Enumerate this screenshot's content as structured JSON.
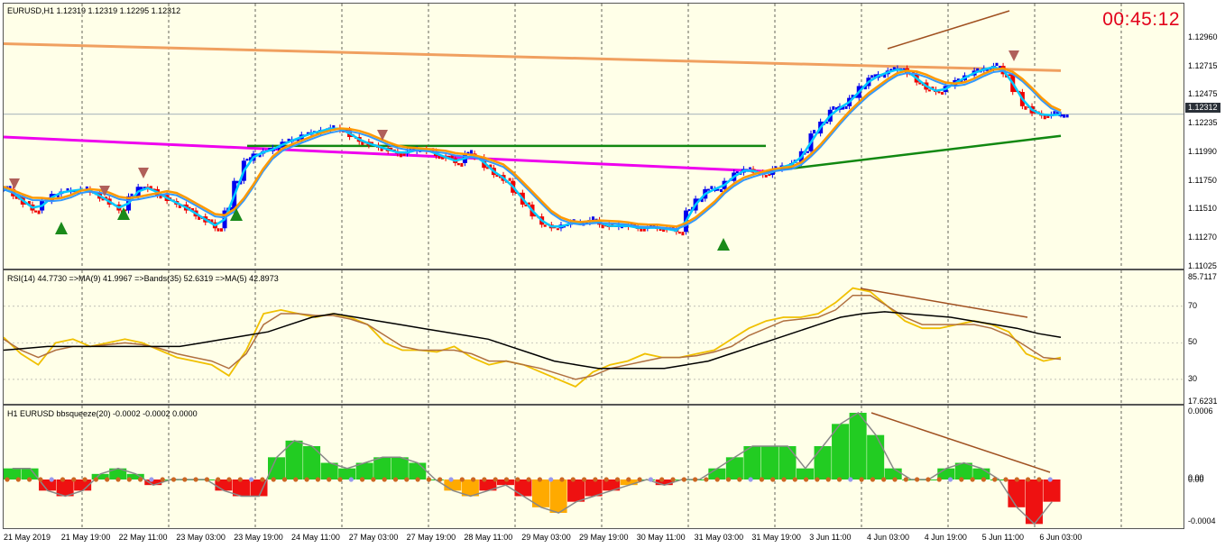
{
  "chart_window": {
    "title": "EURUSD,H1  1.12319 1.12319 1.12295 1.12312",
    "timer": "00:45:12",
    "current_price": "1.12312",
    "price_scale": [
      "1.12960",
      "1.12715",
      "1.12475",
      "1.12235",
      "1.11990",
      "1.11750",
      "1.11510",
      "1.11270",
      "1.11025"
    ],
    "time_axis": [
      "21 May 2019",
      "21 May 19:00",
      "22 May 11:00",
      "23 May 03:00",
      "23 May 19:00",
      "24 May 11:00",
      "27 May 03:00",
      "27 May 19:00",
      "28 May 11:00",
      "29 May 03:00",
      "29 May 19:00",
      "30 May 11:00",
      "31 May 03:00",
      "31 May 19:00",
      "3 Jun 11:00",
      "4 Jun 03:00",
      "4 Jun 19:00",
      "5 Jun 11:00",
      "6 Jun 03:00"
    ]
  },
  "rsi_pane": {
    "label": "RSI(14) 44.7730  =>MA(9) 41.9967  =>Bands(35) 52.6319  =>MA(5) 42.8973",
    "scale": [
      "85.7117",
      "70",
      "50",
      "30",
      "17.6231"
    ]
  },
  "squeeze_pane": {
    "label": "H1 EURUSD bbsqueeze(20) -0.0002 -0.0002 0.0000",
    "scale": [
      "0.0006",
      "0.00",
      "0.00",
      "-0.0004"
    ]
  },
  "colors": {
    "background": "#ffffe8",
    "bull_bar": "#0000ee",
    "bear_bar": "#ee0000",
    "ma_fast": "#00c8ff",
    "ma_mid": "#3399ff",
    "ma_orange": "#ff9900",
    "ma_long": "#f0a060",
    "ma_magenta": "#ee00ee",
    "ma_green": "#118811",
    "rsi_yellow": "#f0c000",
    "rsi_brown": "#b07040",
    "trendline": "#a05020",
    "hist_up": "#22cc22",
    "hist_down": "#ee1111",
    "hist_orange": "#ffaa00"
  },
  "chart_data": [
    {
      "type": "candlestick",
      "title": "EURUSD,H1",
      "ylim": [
        1.11025,
        1.132
      ],
      "x_labels": [
        "21 May 2019",
        "21 May 19:00",
        "22 May 11:00",
        "23 May 03:00",
        "23 May 19:00",
        "24 May 11:00",
        "27 May 03:00",
        "27 May 19:00",
        "28 May 11:00",
        "29 May 03:00",
        "29 May 19:00",
        "30 May 11:00",
        "31 May 03:00",
        "31 May 19:00",
        "3 Jun 11:00",
        "4 Jun 03:00",
        "4 Jun 19:00",
        "5 Jun 11:00",
        "6 Jun 03:00"
      ],
      "close_path": [
        1.1168,
        1.1162,
        1.1155,
        1.115,
        1.1158,
        1.1164,
        1.1166,
        1.1167,
        1.1168,
        1.1165,
        1.116,
        1.1155,
        1.115,
        1.1162,
        1.117,
        1.1168,
        1.1163,
        1.1158,
        1.1155,
        1.115,
        1.1145,
        1.114,
        1.1135,
        1.115,
        1.1175,
        1.1192,
        1.1198,
        1.12,
        1.1203,
        1.1208,
        1.121,
        1.1214,
        1.1216,
        1.1218,
        1.122,
        1.1218,
        1.1212,
        1.1208,
        1.1205,
        1.1203,
        1.12,
        1.1198,
        1.12,
        1.1202,
        1.12,
        1.1196,
        1.1194,
        1.119,
        1.1198,
        1.1195,
        1.1186,
        1.118,
        1.1175,
        1.1165,
        1.1155,
        1.1145,
        1.1138,
        1.1135,
        1.1138,
        1.114,
        1.114,
        1.1142,
        1.1138,
        1.1136,
        1.1138,
        1.1136,
        1.1135,
        1.1136,
        1.1135,
        1.1134,
        1.1132,
        1.115,
        1.116,
        1.1168,
        1.1168,
        1.1175,
        1.1182,
        1.1185,
        1.1182,
        1.118,
        1.1185,
        1.1188,
        1.119,
        1.12,
        1.1215,
        1.1225,
        1.1235,
        1.1238,
        1.1245,
        1.1255,
        1.1262,
        1.1265,
        1.1268,
        1.127,
        1.1265,
        1.1258,
        1.1252,
        1.125,
        1.1255,
        1.126,
        1.1264,
        1.1268,
        1.127,
        1.1272,
        1.1265,
        1.125,
        1.1238,
        1.1232,
        1.123,
        1.1231,
        1.1231
      ],
      "overlays": [
        {
          "name": "MA long",
          "values": [
            1.129,
            1.1268
          ]
        },
        {
          "name": "MA magenta",
          "values": [
            1.1212,
            1.1183
          ]
        },
        {
          "name": "MA green",
          "values": [
            1.1192,
            1.1213
          ]
        }
      ]
    },
    {
      "type": "line",
      "title": "RSI(14)",
      "ylim": [
        17.6231,
        85.7117
      ],
      "series": [
        {
          "name": "RSI(14)",
          "values": [
            53,
            44,
            38,
            50,
            52,
            48,
            50,
            52,
            50,
            46,
            42,
            40,
            38,
            32,
            46,
            66,
            68,
            66,
            64,
            66,
            64,
            60,
            50,
            46,
            46,
            45,
            48,
            42,
            38,
            40,
            38,
            34,
            30,
            26,
            34,
            38,
            40,
            44,
            42,
            42,
            44,
            46,
            52,
            58,
            62,
            64,
            64,
            66,
            72,
            80,
            78,
            70,
            62,
            58,
            58,
            60,
            62,
            60,
            56,
            44,
            40,
            42
          ]
        },
        {
          "name": "MA(9)",
          "values": [
            52,
            46,
            42,
            46,
            48,
            48,
            49,
            50,
            49,
            47,
            44,
            42,
            40,
            36,
            44,
            60,
            66,
            66,
            65,
            65,
            63,
            60,
            54,
            48,
            46,
            46,
            46,
            44,
            40,
            40,
            38,
            36,
            33,
            30,
            32,
            36,
            38,
            40,
            42,
            42,
            43,
            45,
            48,
            54,
            58,
            62,
            63,
            64,
            68,
            76,
            76,
            70,
            64,
            60,
            60,
            60,
            60,
            58,
            54,
            48,
            42,
            41
          ]
        },
        {
          "name": "Bands(35)",
          "values": [
            46,
            47,
            48,
            48,
            48,
            48,
            48,
            48,
            48,
            50,
            52,
            54,
            56,
            60,
            64,
            66,
            64,
            62,
            60,
            58,
            56,
            54,
            52,
            48,
            44,
            40,
            38,
            36,
            36,
            36,
            36,
            38,
            40,
            44,
            48,
            52,
            56,
            60,
            64,
            66,
            67,
            66,
            65,
            64,
            62,
            60,
            58,
            55,
            53
          ]
        }
      ]
    },
    {
      "type": "bar",
      "title": "bbsqueeze(20)",
      "ylim": [
        -0.0004,
        0.0006
      ],
      "values": [
        0.0001,
        0.0001,
        -0.0001,
        -0.00015,
        -0.0001,
        5e-05,
        0.0001,
        5e-05,
        -5e-05,
        0.0,
        0.0,
        0.0,
        -0.0001,
        -0.00015,
        -0.00015,
        0.0002,
        0.00035,
        0.0003,
        0.00015,
        0.0001,
        0.00015,
        0.0002,
        0.0002,
        0.00015,
        0.0,
        -0.0001,
        -0.00015,
        -0.0001,
        -5e-05,
        -0.00015,
        -0.00025,
        -0.0003,
        -0.0002,
        -0.00015,
        -0.0001,
        -5e-05,
        0.0,
        -5e-05,
        0.0,
        0.0,
        0.0001,
        0.0002,
        0.0003,
        0.0003,
        0.0003,
        0.0001,
        0.0003,
        0.0005,
        0.0006,
        0.0004,
        0.0001,
        0.0,
        0.0,
        0.0001,
        0.00015,
        0.0001,
        0.0,
        -0.00025,
        -0.0004,
        -0.0002
      ]
    }
  ]
}
